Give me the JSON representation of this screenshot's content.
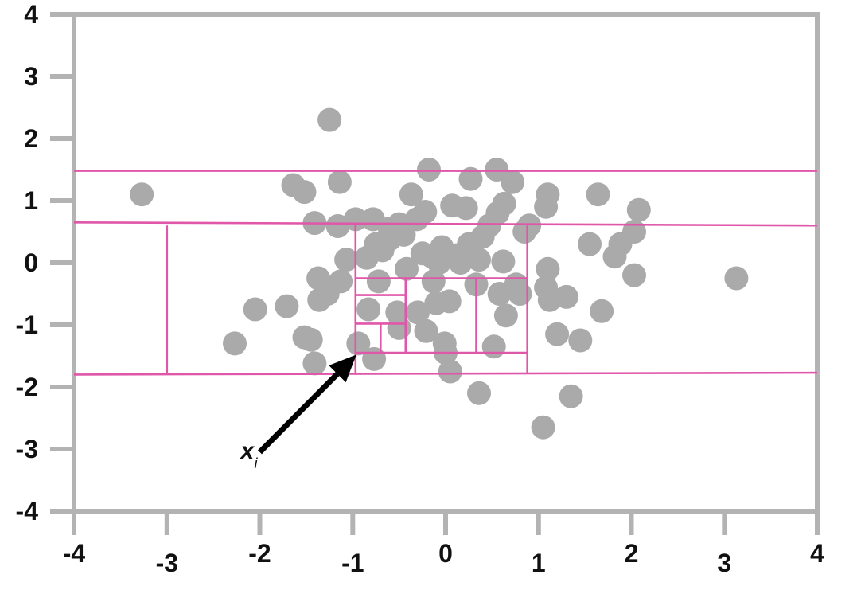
{
  "chart_data": {
    "type": "scatter",
    "title": "",
    "xlabel": "",
    "ylabel": "",
    "xlim": [
      -4,
      4
    ],
    "ylim": [
      -4,
      4
    ],
    "grid": false,
    "x_ticks": [
      -4,
      -3,
      -2,
      -1,
      0,
      1,
      2,
      3,
      4
    ],
    "y_ticks": [
      -4,
      -3,
      -2,
      -1,
      0,
      1,
      2,
      3,
      4
    ],
    "x_tick_labels": [
      "-4",
      "-3",
      "-2",
      "-1",
      "0",
      "1",
      "2",
      "3",
      "4"
    ],
    "y_tick_labels": [
      "-4",
      "-3",
      "-2",
      "-1",
      "0",
      "1",
      "2",
      "3",
      "4"
    ],
    "colors": {
      "points": "#aaaaaa",
      "partition_lines": "#e056a8",
      "axes": "#b3b3b3",
      "arrow": "#000000"
    },
    "points": [
      [
        -3.27,
        1.1
      ],
      [
        -2.27,
        -1.3
      ],
      [
        -2.05,
        -0.75
      ],
      [
        -1.71,
        -0.7
      ],
      [
        -1.64,
        1.25
      ],
      [
        -1.52,
        1.14
      ],
      [
        -1.52,
        -1.2
      ],
      [
        -1.45,
        -1.24
      ],
      [
        -1.41,
        -1.62
      ],
      [
        -1.41,
        0.64
      ],
      [
        -1.36,
        -0.6
      ],
      [
        -1.37,
        -0.25
      ],
      [
        -1.27,
        -0.5
      ],
      [
        -1.25,
        2.3
      ],
      [
        -1.16,
        0.59
      ],
      [
        -1.14,
        1.3
      ],
      [
        -1.13,
        -0.3
      ],
      [
        -1.07,
        0.05
      ],
      [
        -0.94,
        -1.3
      ],
      [
        -0.97,
        0.7
      ],
      [
        -0.85,
        0.08
      ],
      [
        -0.78,
        0.7
      ],
      [
        -0.83,
        -0.75
      ],
      [
        -0.77,
        -1.55
      ],
      [
        -0.75,
        0.3
      ],
      [
        -0.72,
        -0.3
      ],
      [
        -0.68,
        0.2
      ],
      [
        -0.6,
        0.55
      ],
      [
        -0.6,
        0.38
      ],
      [
        -0.52,
        -0.8
      ],
      [
        -0.5,
        0.62
      ],
      [
        -0.45,
        0.45
      ],
      [
        -0.42,
        -0.1
      ],
      [
        -0.37,
        1.1
      ],
      [
        -0.31,
        0.7
      ],
      [
        -0.3,
        -0.8
      ],
      [
        -0.25,
        0.15
      ],
      [
        -0.22,
        0.82
      ],
      [
        -0.21,
        -1.1
      ],
      [
        -0.18,
        1.5
      ],
      [
        -0.15,
        0.1
      ],
      [
        -0.13,
        -0.3
      ],
      [
        -0.1,
        -0.65
      ],
      [
        -0.07,
        0.0
      ],
      [
        -0.04,
        0.25
      ],
      [
        -0.01,
        -1.3
      ],
      [
        0.0,
        -1.45
      ],
      [
        0.04,
        -0.62
      ],
      [
        0.05,
        -1.75
      ],
      [
        0.07,
        0.92
      ],
      [
        0.12,
        0.12
      ],
      [
        0.16,
        0.0
      ],
      [
        0.22,
        0.88
      ],
      [
        0.25,
        0.3
      ],
      [
        0.27,
        1.35
      ],
      [
        0.33,
        -0.35
      ],
      [
        0.36,
        0.05
      ],
      [
        0.36,
        -2.1
      ],
      [
        0.4,
        0.42
      ],
      [
        0.47,
        0.6
      ],
      [
        0.52,
        -1.35
      ],
      [
        0.55,
        1.5
      ],
      [
        0.56,
        0.8
      ],
      [
        0.58,
        -0.5
      ],
      [
        0.62,
        0.02
      ],
      [
        0.63,
        0.95
      ],
      [
        0.65,
        -0.85
      ],
      [
        0.72,
        1.3
      ],
      [
        0.76,
        -0.35
      ],
      [
        0.8,
        -0.5
      ],
      [
        0.85,
        0.5
      ],
      [
        0.9,
        0.6
      ],
      [
        1.05,
        -2.65
      ],
      [
        1.08,
        0.9
      ],
      [
        1.1,
        1.1
      ],
      [
        1.08,
        -0.4
      ],
      [
        1.1,
        -0.1
      ],
      [
        1.12,
        -0.6
      ],
      [
        1.2,
        -1.15
      ],
      [
        1.3,
        -0.55
      ],
      [
        1.35,
        -2.15
      ],
      [
        1.45,
        -1.25
      ],
      [
        1.55,
        0.3
      ],
      [
        1.64,
        1.1
      ],
      [
        1.68,
        -0.78
      ],
      [
        1.82,
        0.1
      ],
      [
        1.88,
        0.3
      ],
      [
        2.03,
        0.5
      ],
      [
        2.03,
        -0.2
      ],
      [
        2.08,
        0.85
      ],
      [
        3.13,
        -0.25
      ],
      [
        -0.5,
        -1.05
      ]
    ],
    "partition_segments": [
      [
        [
          -4,
          1.48
        ],
        [
          4,
          1.48
        ]
      ],
      [
        [
          -4,
          0.65
        ],
        [
          4,
          0.6
        ]
      ],
      [
        [
          -4,
          -1.8
        ],
        [
          4,
          -1.77
        ]
      ],
      [
        [
          -3.0,
          0.6
        ],
        [
          -3.0,
          -1.8
        ]
      ],
      [
        [
          -0.97,
          0.62
        ],
        [
          -0.97,
          -1.78
        ]
      ],
      [
        [
          0.88,
          0.6
        ],
        [
          0.88,
          -1.78
        ]
      ],
      [
        [
          -0.97,
          -0.25
        ],
        [
          0.88,
          -0.25
        ]
      ],
      [
        [
          -0.97,
          -1.45
        ],
        [
          0.88,
          -1.45
        ]
      ],
      [
        [
          -0.43,
          -0.25
        ],
        [
          -0.43,
          -1.45
        ]
      ],
      [
        [
          0.33,
          -0.25
        ],
        [
          0.33,
          -1.45
        ]
      ],
      [
        [
          -0.97,
          -0.52
        ],
        [
          -0.43,
          -0.52
        ]
      ],
      [
        [
          -0.97,
          -0.98
        ],
        [
          -0.43,
          -0.98
        ]
      ],
      [
        [
          -0.7,
          -0.98
        ],
        [
          -0.7,
          -1.45
        ]
      ]
    ],
    "annotations": [
      {
        "text": "x",
        "subscript": "i",
        "arrow_from": [
          -2.0,
          -3.05
        ],
        "arrow_to": [
          -0.96,
          -1.48
        ]
      }
    ]
  }
}
